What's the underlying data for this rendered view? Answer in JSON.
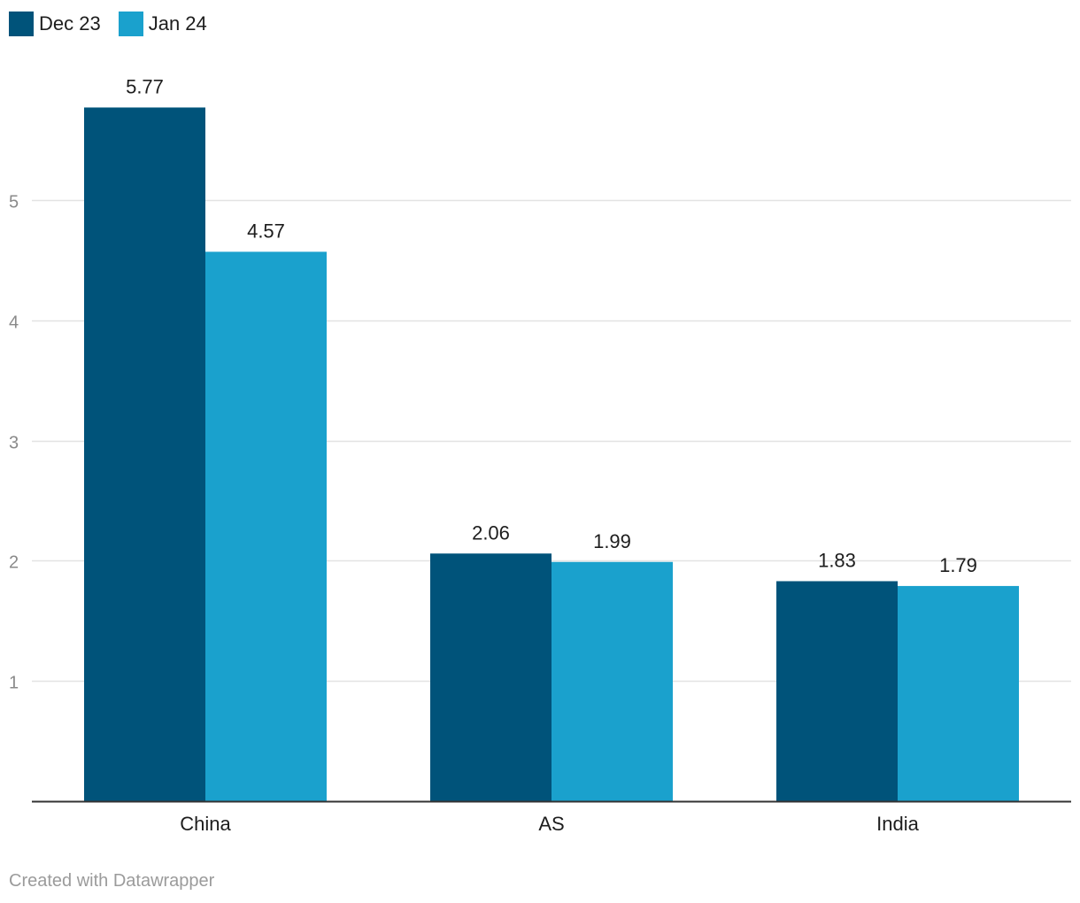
{
  "chart_data": {
    "type": "bar",
    "title": "",
    "xlabel": "",
    "ylabel": "",
    "categories": [
      "China",
      "AS",
      "India"
    ],
    "series": [
      {
        "name": "Dec 23",
        "values": [
          5.77,
          2.06,
          1.83
        ],
        "color": "#00537a"
      },
      {
        "name": "Jan 24",
        "values": [
          4.57,
          1.99,
          1.79
        ],
        "color": "#1aa1cd"
      }
    ],
    "value_labels": [
      [
        "5.77",
        "2.06",
        "1.83"
      ],
      [
        "4.57",
        "1.99",
        "1.79"
      ]
    ],
    "ylim": [
      0,
      5.77
    ],
    "yticks": [
      1,
      2,
      3,
      4,
      5
    ],
    "ytick_labels": [
      "1",
      "2",
      "3",
      "4",
      "5"
    ],
    "grid": true,
    "legend": "top-left"
  },
  "credit": "Created with Datawrapper",
  "colors": {
    "grid": "#e3e3e3",
    "axis": "#333333",
    "tick_text": "#8a8a8a",
    "label_text": "#1d1d1d"
  }
}
